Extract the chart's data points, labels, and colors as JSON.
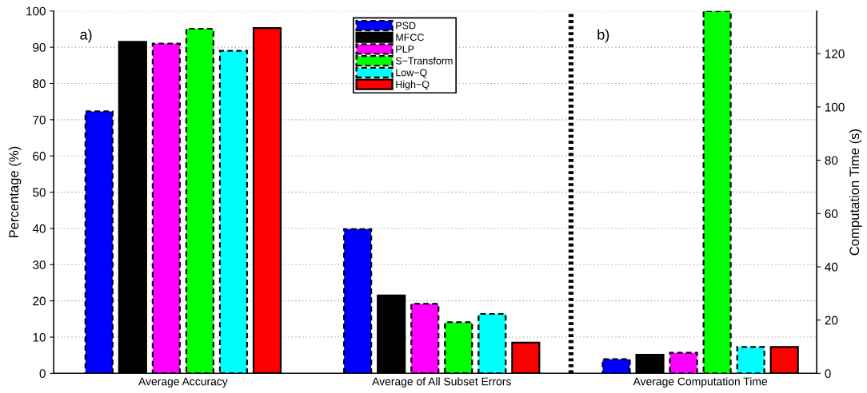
{
  "chart_data": {
    "type": "bar",
    "categories": [
      "Average Accuracy",
      "Average of All Subset Errors",
      "Average Computation Time"
    ],
    "ylabel": "Percentage (%)",
    "y2label": "Computation Time (s)",
    "ylim": [
      0,
      100
    ],
    "yticks": [
      0,
      10,
      20,
      30,
      40,
      50,
      60,
      70,
      80,
      90,
      100
    ],
    "y2lim": [
      0,
      136
    ],
    "y2ticks": [
      0,
      20,
      40,
      60,
      80,
      100,
      120
    ],
    "grid": "y",
    "legend": "top",
    "annotations": [
      "a)",
      "b)"
    ],
    "series": [
      {
        "name": "PSD",
        "color": "#0000ff",
        "line_style": "dashed",
        "values": [
          72.3,
          39.8,
          null
        ]
      },
      {
        "name": "MFCC",
        "color": "#000000",
        "line_style": "solid",
        "values": [
          91.5,
          21.5,
          null
        ]
      },
      {
        "name": "PLP",
        "color": "#ff00ff",
        "line_style": "dashed",
        "values": [
          91,
          19.2,
          null
        ]
      },
      {
        "name": "S−Transform",
        "color": "#00ff00",
        "line_style": "dashed",
        "values": [
          95.1,
          14.1,
          null
        ]
      },
      {
        "name": "Low−Q",
        "color": "#00ffff",
        "line_style": "dashed",
        "values": [
          89,
          16.4,
          null
        ]
      },
      {
        "name": "High−Q",
        "color": "#ff0000",
        "line_style": "solid",
        "values": [
          95.3,
          8.5,
          null
        ]
      },
      {
        "color": "#0000ff",
        "line_style": "dashed",
        "axis": "y2",
        "values": [
          null,
          null,
          5.3
        ]
      },
      {
        "color": "#000000",
        "line_style": "solid",
        "axis": "y2",
        "values": [
          null,
          null,
          7.0
        ]
      },
      {
        "color": "#ff00ff",
        "line_style": "dashed",
        "axis": "y2",
        "values": [
          null,
          null,
          7.7
        ]
      },
      {
        "color": "#00ff00",
        "line_style": "dashed",
        "axis": "y2",
        "values": [
          null,
          null,
          136
        ]
      },
      {
        "color": "#00ffff",
        "line_style": "dashed",
        "axis": "y2",
        "values": [
          null,
          null,
          9.9
        ]
      },
      {
        "color": "#ff0000",
        "line_style": "solid",
        "axis": "y2",
        "values": [
          null,
          null,
          9.9
        ]
      }
    ]
  }
}
